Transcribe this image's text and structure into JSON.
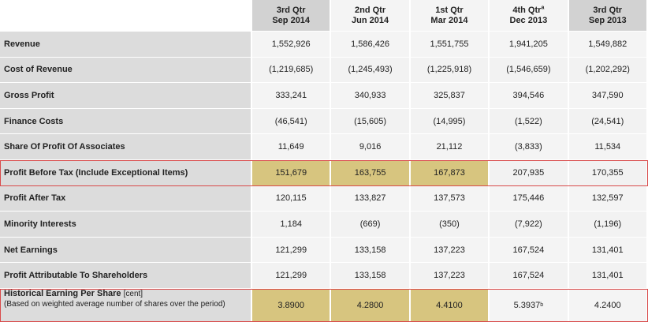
{
  "columns": [
    {
      "line1": "3rd Qtr",
      "line2": "Sep 2014",
      "sup": ""
    },
    {
      "line1": "2nd Qtr",
      "line2": "Jun 2014",
      "sup": ""
    },
    {
      "line1": "1st Qtr",
      "line2": "Mar 2014",
      "sup": ""
    },
    {
      "line1": "4th Qtr",
      "line2": "Dec 2013",
      "sup": "a"
    },
    {
      "line1": "3rd Qtr",
      "line2": "Sep 2013",
      "sup": ""
    }
  ],
  "rows": [
    {
      "label": "Revenue",
      "values": [
        "1,552,926",
        "1,586,426",
        "1,551,755",
        "1,941,205",
        "1,549,882"
      ]
    },
    {
      "label": "Cost of Revenue",
      "values": [
        "(1,219,685)",
        "(1,245,493)",
        "(1,225,918)",
        "(1,546,659)",
        "(1,202,292)"
      ]
    },
    {
      "label": "Gross Profit",
      "values": [
        "333,241",
        "340,933",
        "325,837",
        "394,546",
        "347,590"
      ]
    },
    {
      "label": "Finance Costs",
      "values": [
        "(46,541)",
        "(15,605)",
        "(14,995)",
        "(1,522)",
        "(24,541)"
      ]
    },
    {
      "label": "Share Of Profit Of Associates",
      "values": [
        "11,649",
        "9,016",
        "21,112",
        "(3,833)",
        "11,534"
      ]
    },
    {
      "label": "Profit Before Tax (Include Exceptional Items)",
      "values": [
        "151,679",
        "163,755",
        "167,873",
        "207,935",
        "170,355"
      ]
    },
    {
      "label": "Profit After Tax",
      "values": [
        "120,115",
        "133,827",
        "137,573",
        "175,446",
        "132,597"
      ]
    },
    {
      "label": "Minority Interests",
      "values": [
        "1,184",
        "(669)",
        "(350)",
        "(7,922)",
        "(1,196)"
      ]
    },
    {
      "label": "Net Earnings",
      "values": [
        "121,299",
        "133,158",
        "137,223",
        "167,524",
        "131,401"
      ]
    },
    {
      "label": "Profit Attributable To Shareholders",
      "values": [
        "121,299",
        "133,158",
        "137,223",
        "167,524",
        "131,401"
      ]
    }
  ],
  "eps_row": {
    "label": "Historical Earning Per Share",
    "label_unit": "[cent]",
    "label_sub": "(Based on weighted average number of shares over the period)",
    "values": [
      "3.8900",
      "4.2800",
      "4.4100",
      "5.3937",
      "4.2400"
    ],
    "value_sups": [
      "",
      "",
      "",
      "b",
      ""
    ]
  },
  "colors": {
    "highlight_fill": "#d7c57f",
    "highlight_border": "#d84a4a",
    "label_bg": "#dcdcdc",
    "cell_bg": "#f2f2f2"
  }
}
